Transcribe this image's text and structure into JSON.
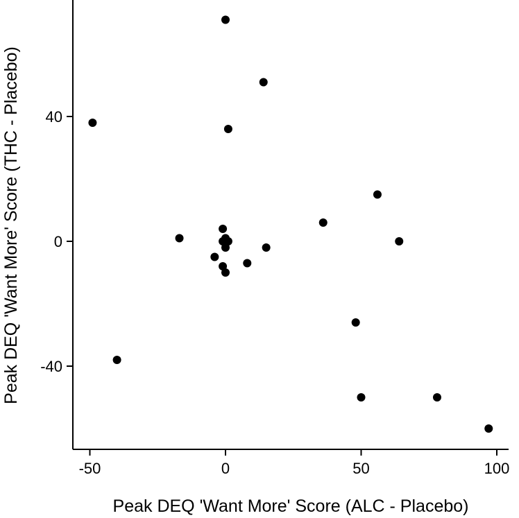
{
  "chart_data": {
    "type": "scatter",
    "title": "",
    "xlabel": "Peak DEQ 'Want More' Score (ALC - Placebo)",
    "ylabel": "Peak DEQ 'Want More' Score (THC - Placebo)",
    "xlim": [
      -55,
      105
    ],
    "ylim": [
      -62,
      77
    ],
    "xticks": [
      -50,
      0,
      50,
      100
    ],
    "xtick_labels": [
      "-50",
      "0",
      "50",
      "100"
    ],
    "yticks": [
      -40,
      0,
      40
    ],
    "ytick_labels": [
      "-40",
      "0",
      "40"
    ],
    "grid": false,
    "legend": "none",
    "point_color": "#000000",
    "series": [
      {
        "points": [
          {
            "x": 0,
            "y": 71
          },
          {
            "x": 14,
            "y": 51
          },
          {
            "x": -49,
            "y": 38
          },
          {
            "x": 1,
            "y": 36
          },
          {
            "x": 56,
            "y": 15
          },
          {
            "x": 36,
            "y": 6
          },
          {
            "x": -1,
            "y": 4
          },
          {
            "x": -17,
            "y": 1
          },
          {
            "x": 0,
            "y": 1
          },
          {
            "x": -1,
            "y": 0
          },
          {
            "x": 1,
            "y": 0
          },
          {
            "x": 64,
            "y": 0
          },
          {
            "x": 0,
            "y": -2
          },
          {
            "x": 15,
            "y": -2
          },
          {
            "x": -4,
            "y": -5
          },
          {
            "x": 8,
            "y": -7
          },
          {
            "x": -1,
            "y": -8
          },
          {
            "x": 0,
            "y": -10
          },
          {
            "x": 48,
            "y": -26
          },
          {
            "x": -40,
            "y": -38
          },
          {
            "x": 50,
            "y": -50
          },
          {
            "x": 78,
            "y": -50
          },
          {
            "x": 97,
            "y": -60
          }
        ]
      }
    ]
  }
}
